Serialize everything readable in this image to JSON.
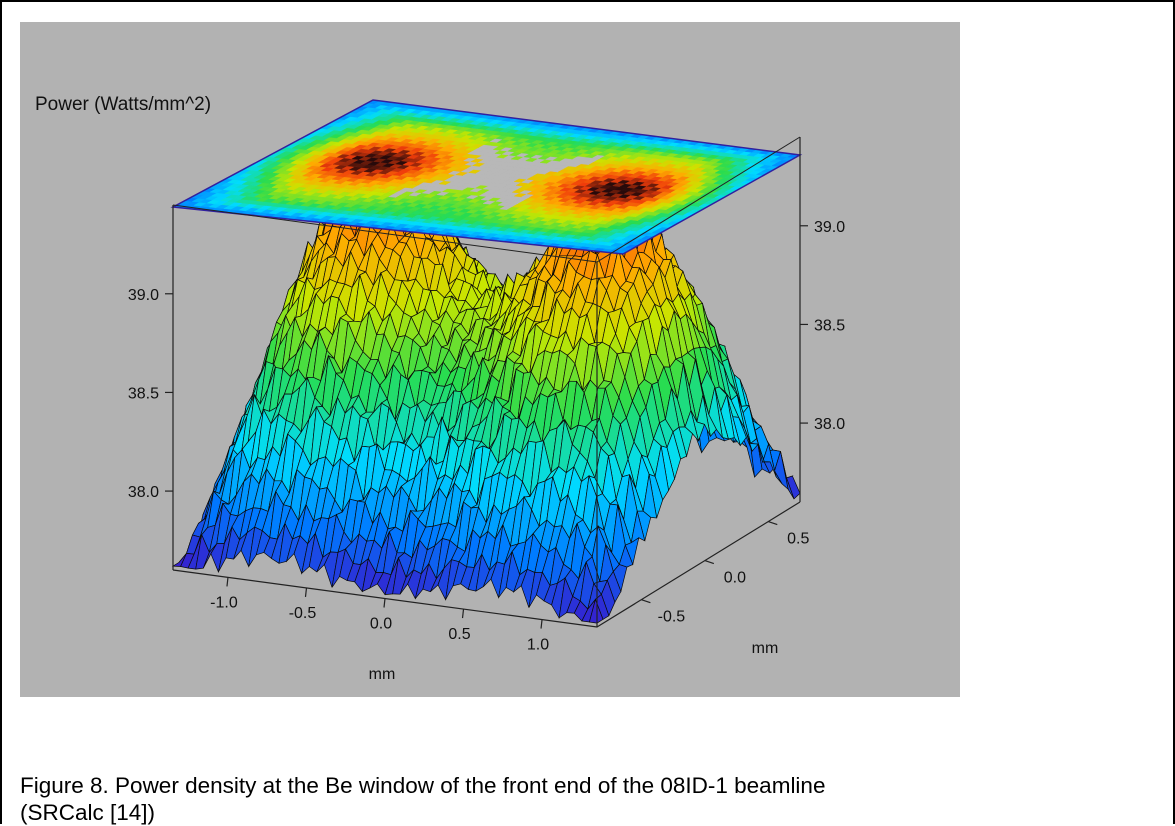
{
  "caption": {
    "line1": "Figure 8. Power density at the Be window of the front end of the 08ID-1 beamline",
    "line2": "(SRCalc [14])"
  },
  "chart_data": {
    "type": "surface3d",
    "title": "Power (Watts/mm^2)",
    "xlabel": "mm",
    "ylabel": "mm",
    "x_ticks": [
      "-1.0",
      "-0.5",
      "0.0",
      "0.5",
      "1.0"
    ],
    "x_tick_values": [
      -1.0,
      -0.5,
      0.0,
      0.5,
      1.0
    ],
    "y_ticks": [
      "0.5",
      "0.0",
      "-0.5"
    ],
    "y_tick_values": [
      0.5,
      0.0,
      -0.5
    ],
    "z_ticks_left": [
      "39.0",
      "38.5",
      "38.0"
    ],
    "z_ticks_right": [
      "39.0",
      "38.5",
      "38.0"
    ],
    "z_tick_values": [
      39.0,
      38.5,
      38.0
    ],
    "xlim": [
      -1.35,
      1.35
    ],
    "ylim": [
      -0.85,
      0.75
    ],
    "zlim": [
      37.6,
      39.45
    ],
    "peak_centers_x": [
      -0.75,
      0.75
    ],
    "z_max": 39.4,
    "z_edge_min": 37.65,
    "top_projection": "contour map",
    "colormap": "rainbow",
    "grid": false
  }
}
